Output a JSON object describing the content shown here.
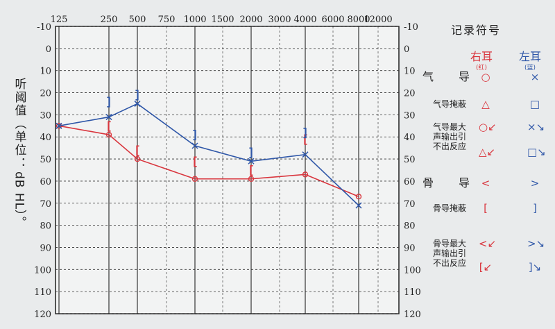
{
  "chart_data": {
    "type": "line",
    "x_tick_labels_top": [
      "125",
      "250",
      "500",
      "750",
      "1000",
      "1500",
      "2000",
      "3000",
      "4000",
      "6000",
      "8000",
      "12000"
    ],
    "y_ticks_left": [
      "-10",
      "0",
      "10",
      "20",
      "30",
      "40",
      "50",
      "60",
      "70",
      "80",
      "90",
      "100",
      "110",
      "120"
    ],
    "y_ticks_right": [
      "-10",
      "0",
      "10",
      "20",
      "30",
      "40",
      "50",
      "60",
      "70",
      "80",
      "90",
      "100",
      "110",
      "120"
    ],
    "ylim": [
      -10,
      120
    ],
    "y_inverted": true,
    "ylabel_cjk": "听阈值（单位：",
    "ylabel_rotated": "dB HL）。",
    "grid": true,
    "series": [
      {
        "name": "",
        "color": "#d9363e",
        "marker": "circle",
        "points": [
          {
            "x": "125",
            "y": 35
          },
          {
            "x": "250",
            "y": 39
          },
          {
            "x": "500",
            "y": 50
          },
          {
            "x": "1000",
            "y": 59
          },
          {
            "x": "2000",
            "y": 59
          },
          {
            "x": "4000",
            "y": 57
          },
          {
            "x": "8000",
            "y": 67
          }
        ]
      },
      {
        "name": "",
        "color": "#2f57a8",
        "marker": "x",
        "points": [
          {
            "x": "125",
            "y": 35
          },
          {
            "x": "250",
            "y": 31
          },
          {
            "x": "500",
            "y": 25
          },
          {
            "x": "1000",
            "y": 44
          },
          {
            "x": "2000",
            "y": 51
          },
          {
            "x": "4000",
            "y": 48
          },
          {
            "x": "8000",
            "y": 71
          }
        ]
      }
    ],
    "bone_conduction": [
      {
        "side": "right",
        "color": "#d9363e",
        "symbol": "[",
        "x": "250",
        "y": 35
      },
      {
        "side": "right",
        "color": "#d9363e",
        "symbol": "[",
        "x": "500",
        "y": 46
      },
      {
        "side": "right",
        "color": "#d9363e",
        "symbol": "[",
        "x": "1000",
        "y": 51
      },
      {
        "side": "right",
        "color": "#d9363e",
        "symbol": "[",
        "x": "2000",
        "y": 55
      },
      {
        "side": "right",
        "color": "#d9363e",
        "symbol": "[",
        "x": "4000",
        "y": 41
      },
      {
        "side": "left",
        "color": "#2f57a8",
        "symbol": "]",
        "x": "250",
        "y": 24
      },
      {
        "side": "left",
        "color": "#2f57a8",
        "symbol": "]",
        "x": "500",
        "y": 21
      },
      {
        "side": "left",
        "color": "#2f57a8",
        "symbol": "]",
        "x": "1000",
        "y": 39
      },
      {
        "side": "left",
        "color": "#2f57a8",
        "symbol": "]",
        "x": "2000",
        "y": 47
      },
      {
        "side": "left",
        "color": "#2f57a8",
        "symbol": "]",
        "x": "4000",
        "y": 38
      }
    ]
  },
  "legend": {
    "title": "记录符号",
    "right_ear": {
      "label": "右耳",
      "sub": "(红)",
      "color": "#d9363e"
    },
    "left_ear": {
      "label": "左耳",
      "sub": "(蓝)",
      "color": "#2f57a8"
    },
    "rows": [
      {
        "label": "气　导",
        "big": true,
        "right_symbol": "○",
        "left_symbol": "×"
      },
      {
        "label": "气导掩蔽",
        "big": false,
        "right_symbol": "△",
        "left_symbol": "□"
      },
      {
        "label": "气导最大\n声输出引\n不出反应",
        "big": false,
        "right_symbol": "○↙",
        "left_symbol": "×↘"
      },
      {
        "label": "",
        "big": false,
        "right_symbol": "△↙",
        "left_symbol": "□↘"
      },
      {
        "label": "骨　导",
        "big": true,
        "right_symbol": "<",
        "left_symbol": ">"
      },
      {
        "label": "骨导掩蔽",
        "big": false,
        "right_symbol": "[",
        "left_symbol": "]"
      },
      {
        "label": "骨导最大\n声输出引\n不出反应",
        "big": false,
        "right_symbol": "<↙",
        "left_symbol": ">↘"
      },
      {
        "label": "",
        "big": false,
        "right_symbol": "[↙",
        "left_symbol": "]↘"
      }
    ]
  }
}
